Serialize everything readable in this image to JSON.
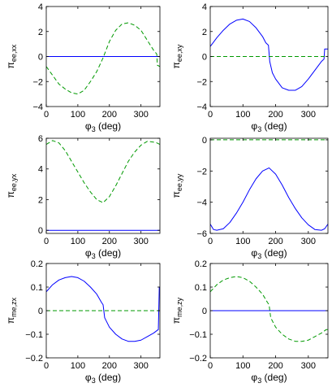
{
  "figure": {
    "background": "#ffffff",
    "colors": {
      "solid": "#0000ff",
      "dashed": "#009900",
      "axes": "#000000"
    }
  },
  "chart_data": [
    {
      "type": "line",
      "xlabel": "φ3 (deg)",
      "ylabel": "πee,xx",
      "xlim": [
        0,
        360
      ],
      "ylim": [
        -4,
        4
      ],
      "xticks": [
        "0",
        "100",
        "200",
        "300"
      ],
      "xtick_values": [
        0,
        100,
        200,
        300
      ],
      "yticks": [
        "4",
        "2",
        "0",
        "−2",
        "−4"
      ],
      "ytick_values": [
        4,
        2,
        0,
        -2,
        -4
      ],
      "grid": false,
      "series": [
        {
          "style": "solid",
          "color": "#0000ff",
          "x": [
            0,
            360
          ],
          "y": [
            0,
            0
          ]
        },
        {
          "style": "dashed",
          "color": "#009900",
          "x": [
            0,
            20,
            40,
            60,
            80,
            100,
            120,
            140,
            160,
            180,
            200,
            220,
            240,
            260,
            280,
            300,
            320,
            340,
            350,
            352,
            360
          ],
          "y": [
            -0.8,
            -1.5,
            -2.2,
            -2.6,
            -2.9,
            -3.0,
            -2.7,
            -2.0,
            -1.2,
            -0.1,
            1.2,
            2.1,
            2.6,
            2.7,
            2.5,
            2.1,
            1.3,
            0.5,
            0.2,
            -0.7,
            -0.8
          ]
        }
      ]
    },
    {
      "type": "line",
      "xlabel": "φ3 (deg)",
      "ylabel": "πee,xy",
      "xlim": [
        0,
        360
      ],
      "ylim": [
        -4,
        4
      ],
      "xticks": [
        "0",
        "100",
        "200",
        "300"
      ],
      "xtick_values": [
        0,
        100,
        200,
        300
      ],
      "yticks": [
        "4",
        "2",
        "0",
        "−2",
        "−4"
      ],
      "ytick_values": [
        4,
        2,
        0,
        -2,
        -4
      ],
      "grid": false,
      "series": [
        {
          "style": "solid",
          "color": "#0000ff",
          "x": [
            0,
            20,
            40,
            60,
            80,
            100,
            120,
            140,
            160,
            170,
            178,
            182,
            190,
            200,
            220,
            240,
            260,
            280,
            300,
            320,
            340,
            348,
            350,
            360
          ],
          "y": [
            0.8,
            1.5,
            2.1,
            2.6,
            2.9,
            3.0,
            2.8,
            2.3,
            1.6,
            1.1,
            0.9,
            -0.4,
            -1.3,
            -1.8,
            -2.5,
            -2.7,
            -2.7,
            -2.4,
            -1.8,
            -1.1,
            -0.4,
            -0.2,
            0.6,
            0.6
          ]
        },
        {
          "style": "dashed",
          "color": "#009900",
          "x": [
            0,
            360
          ],
          "y": [
            0,
            0
          ]
        }
      ]
    },
    {
      "type": "line",
      "xlabel": "φ3 (deg)",
      "ylabel": "πee,yx",
      "xlim": [
        0,
        360
      ],
      "ylim": [
        -0.2,
        6
      ],
      "xticks": [
        "0",
        "100",
        "200",
        "300"
      ],
      "xtick_values": [
        0,
        100,
        200,
        300
      ],
      "yticks": [
        "6",
        "4",
        "2",
        "0"
      ],
      "ytick_values": [
        6,
        4,
        2,
        0
      ],
      "grid": false,
      "series": [
        {
          "style": "dashed",
          "color": "#009900",
          "x": [
            0,
            20,
            40,
            60,
            80,
            100,
            120,
            140,
            160,
            180,
            200,
            220,
            240,
            260,
            280,
            300,
            320,
            340,
            350,
            360
          ],
          "y": [
            5.6,
            5.85,
            5.7,
            5.2,
            4.5,
            3.8,
            3.1,
            2.5,
            2.0,
            1.8,
            2.2,
            2.9,
            3.7,
            4.5,
            5.1,
            5.55,
            5.8,
            5.75,
            5.7,
            5.6
          ]
        },
        {
          "style": "solid",
          "color": "#0000ff",
          "x": [
            0,
            360
          ],
          "y": [
            0,
            0
          ]
        }
      ]
    },
    {
      "type": "line",
      "xlabel": "φ3 (deg)",
      "ylabel": "πee,yy",
      "xlim": [
        0,
        360
      ],
      "ylim": [
        -6,
        0.1
      ],
      "xticks": [
        "0",
        "100",
        "200",
        "300"
      ],
      "xtick_values": [
        0,
        100,
        200,
        300
      ],
      "yticks": [
        "0",
        "−2",
        "−4",
        "−6"
      ],
      "ytick_values": [
        0,
        -2,
        -4,
        -6
      ],
      "grid": false,
      "series": [
        {
          "style": "solid",
          "color": "#0000ff",
          "x": [
            0,
            10,
            20,
            40,
            60,
            80,
            100,
            120,
            140,
            160,
            180,
            200,
            220,
            240,
            260,
            280,
            300,
            320,
            340,
            350,
            360
          ],
          "y": [
            -5.4,
            -5.75,
            -5.8,
            -5.7,
            -5.3,
            -4.7,
            -4.0,
            -3.2,
            -2.5,
            -2.0,
            -1.8,
            -2.2,
            -2.9,
            -3.7,
            -4.4,
            -5.0,
            -5.45,
            -5.75,
            -5.8,
            -5.7,
            -5.4
          ]
        },
        {
          "style": "dashed",
          "color": "#009900",
          "x": [
            0,
            360
          ],
          "y": [
            0,
            0
          ]
        }
      ]
    },
    {
      "type": "line",
      "xlabel": "φ3 (deg)",
      "ylabel": "πme,zx",
      "xlim": [
        0,
        360
      ],
      "ylim": [
        -0.2,
        0.2
      ],
      "xticks": [
        "0",
        "100",
        "200",
        "300"
      ],
      "xtick_values": [
        0,
        100,
        200,
        300
      ],
      "yticks": [
        "0.2",
        "0.1",
        "0",
        "−0.1",
        "−0.2"
      ],
      "ytick_values": [
        0.2,
        0.1,
        0,
        -0.1,
        -0.2
      ],
      "grid": false,
      "series": [
        {
          "style": "solid",
          "color": "#0000ff",
          "x": [
            0,
            20,
            40,
            60,
            80,
            100,
            120,
            140,
            160,
            175,
            180,
            185,
            200,
            220,
            240,
            260,
            280,
            300,
            320,
            340,
            355,
            358,
            360
          ],
          "y": [
            0.08,
            0.11,
            0.13,
            0.14,
            0.145,
            0.14,
            0.125,
            0.1,
            0.07,
            0.035,
            0.025,
            -0.03,
            -0.07,
            -0.1,
            -0.12,
            -0.13,
            -0.13,
            -0.125,
            -0.11,
            -0.095,
            -0.08,
            0.1,
            0.1
          ]
        },
        {
          "style": "dashed",
          "color": "#009900",
          "x": [
            0,
            360
          ],
          "y": [
            0,
            0
          ]
        }
      ]
    },
    {
      "type": "line",
      "xlabel": "φ3 (deg)",
      "ylabel": "πme,zy",
      "xlim": [
        0,
        360
      ],
      "ylim": [
        -0.2,
        0.2
      ],
      "xticks": [
        "0",
        "100",
        "200",
        "300"
      ],
      "xtick_values": [
        0,
        100,
        200,
        300
      ],
      "yticks": [
        "0.2",
        "0.1",
        "0",
        "−0.1",
        "−0.2"
      ],
      "ytick_values": [
        0.2,
        0.1,
        0,
        -0.1,
        -0.2
      ],
      "grid": false,
      "series": [
        {
          "style": "dashed",
          "color": "#009900",
          "x": [
            0,
            20,
            40,
            60,
            80,
            100,
            120,
            140,
            160,
            175,
            180,
            185,
            200,
            220,
            240,
            260,
            280,
            300,
            320,
            340,
            355,
            360
          ],
          "y": [
            0.08,
            0.11,
            0.13,
            0.14,
            0.145,
            0.14,
            0.125,
            0.1,
            0.07,
            0.035,
            0.025,
            -0.03,
            -0.07,
            -0.1,
            -0.12,
            -0.13,
            -0.13,
            -0.125,
            -0.11,
            -0.095,
            -0.08,
            -0.08
          ]
        },
        {
          "style": "solid",
          "color": "#0000ff",
          "x": [
            0,
            360
          ],
          "y": [
            0,
            0
          ]
        }
      ]
    }
  ]
}
